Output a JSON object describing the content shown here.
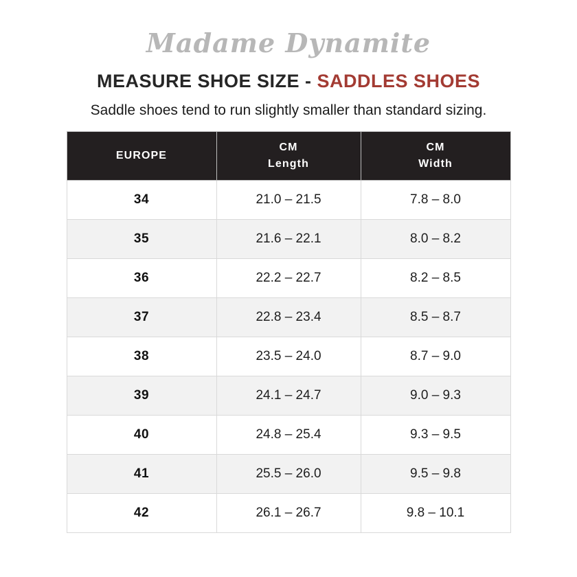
{
  "brand": {
    "logo_text": "Madame Dynamite"
  },
  "title": {
    "main": "MEASURE SHOE SIZE - ",
    "highlight": "SADDLES SHOES"
  },
  "subtitle": "Saddle shoes tend to run slightly smaller than standard sizing.",
  "colors": {
    "accent_red": "#A33B33",
    "header_bg": "#231F20",
    "row_alt_gray": "#F2F2F2",
    "logo_gray": "#B7B7B7",
    "border_gray": "#D9D9D9"
  },
  "table": {
    "columns": [
      {
        "label": "EUROPE",
        "sub": ""
      },
      {
        "label": "CM",
        "sub": "Length"
      },
      {
        "label": "CM",
        "sub": "Width"
      }
    ]
  },
  "chart_data": {
    "type": "table",
    "title": "MEASURE SHOE SIZE - SADDLES SHOES",
    "columns": [
      "EUROPE",
      "CM Length",
      "CM Width"
    ],
    "rows": [
      [
        "34",
        "21.0 – 21.5",
        "7.8 – 8.0"
      ],
      [
        "35",
        "21.6 – 22.1",
        "8.0 – 8.2"
      ],
      [
        "36",
        "22.2 – 22.7",
        "8.2 – 8.5"
      ],
      [
        "37",
        "22.8 – 23.4",
        "8.5 – 8.7"
      ],
      [
        "38",
        "23.5 – 24.0",
        "8.7 – 9.0"
      ],
      [
        "39",
        "24.1 – 24.7",
        "9.0 – 9.3"
      ],
      [
        "40",
        "24.8 – 25.4",
        "9.3 – 9.5"
      ],
      [
        "41",
        "25.5 – 26.0",
        "9.5 – 9.8"
      ],
      [
        "42",
        "26.1 – 26.7",
        "9.8 – 10.1"
      ]
    ]
  }
}
